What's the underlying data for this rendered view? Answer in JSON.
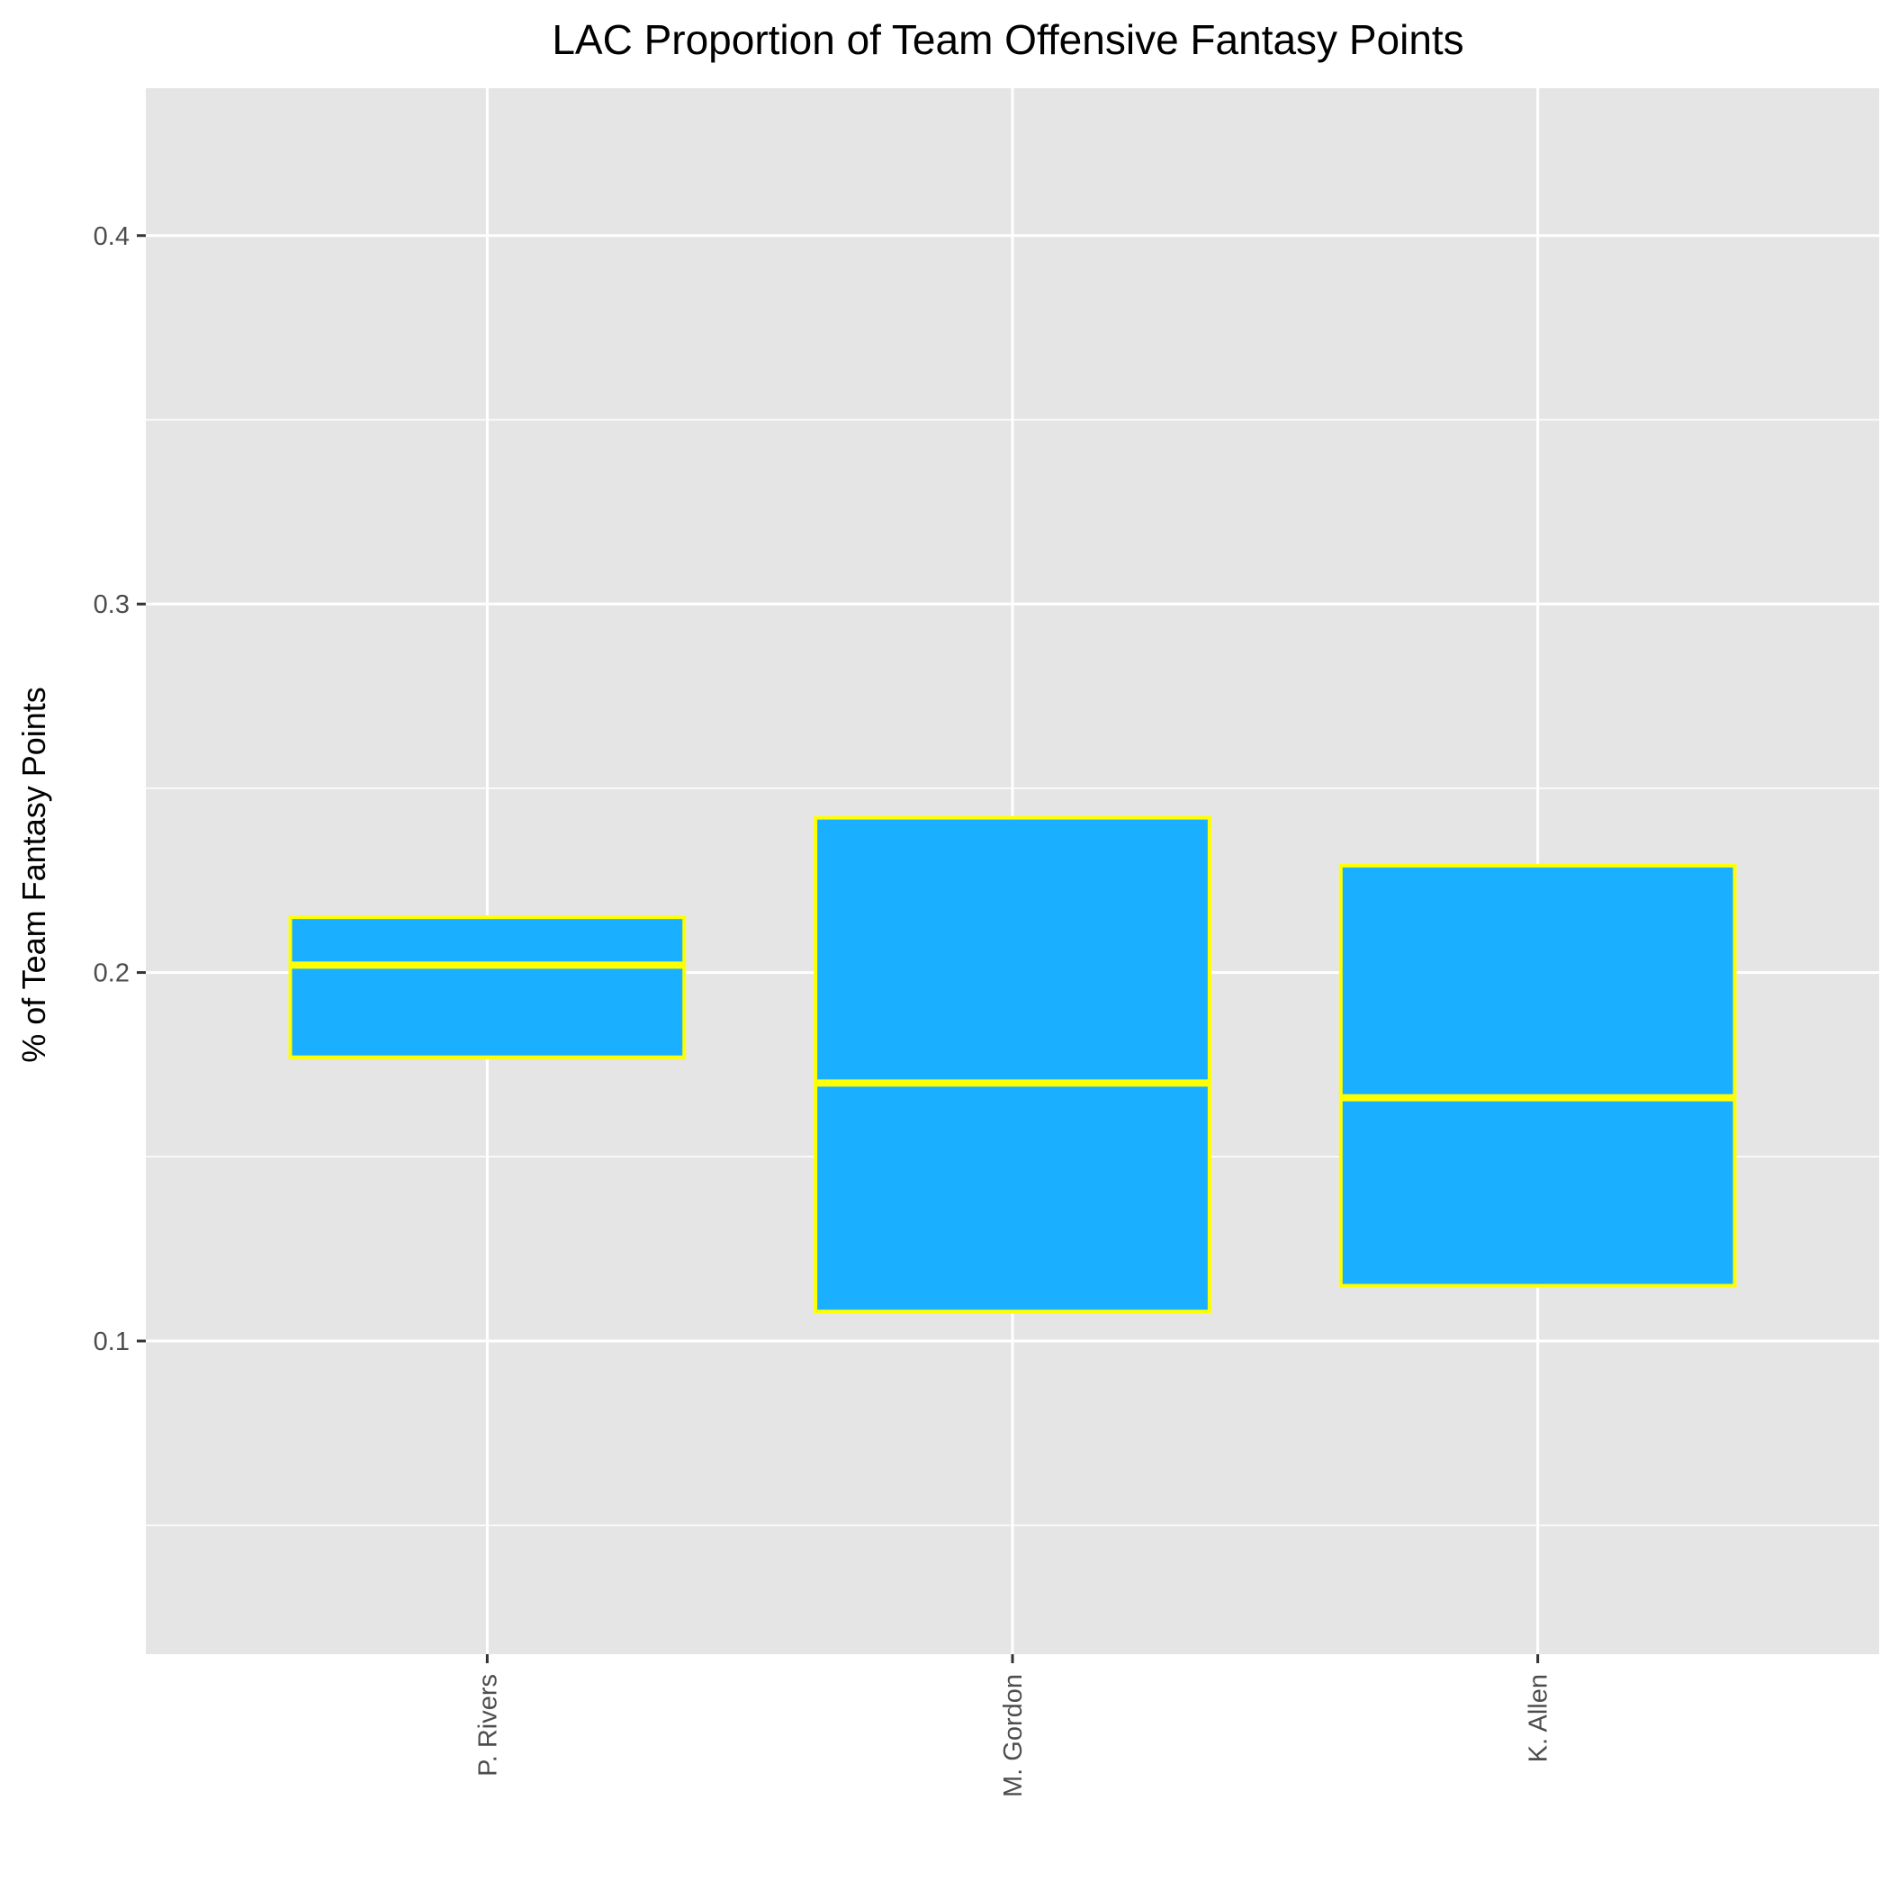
{
  "chart_data": {
    "type": "boxplot",
    "title": "LAC Proportion of Team Offensive Fantasy Points",
    "xlabel": "",
    "ylabel": "% of Team Fantasy Points",
    "ylim": [
      0.015,
      0.44
    ],
    "yticks": [
      0.1,
      0.2,
      0.3,
      0.4
    ],
    "ytick_labels": [
      "0.1",
      "0.2",
      "0.3",
      "0.4"
    ],
    "minor_yticks": [
      0.05,
      0.15,
      0.25,
      0.35
    ],
    "categories": [
      "P. Rivers",
      "M. Gordon",
      "K. Allen"
    ],
    "boxes": [
      {
        "name": "P. Rivers",
        "q1": 0.177,
        "median": 0.202,
        "q3": 0.215
      },
      {
        "name": "M. Gordon",
        "q1": 0.108,
        "median": 0.17,
        "q3": 0.242
      },
      {
        "name": "K. Allen",
        "q1": 0.115,
        "median": 0.166,
        "q3": 0.229
      }
    ],
    "grid": true,
    "colors": {
      "panel": "#e5e5e5",
      "grid": "#ffffff",
      "box_fill": "#1aafff",
      "box_outline": "#ffff00",
      "tick": "#333333"
    }
  }
}
